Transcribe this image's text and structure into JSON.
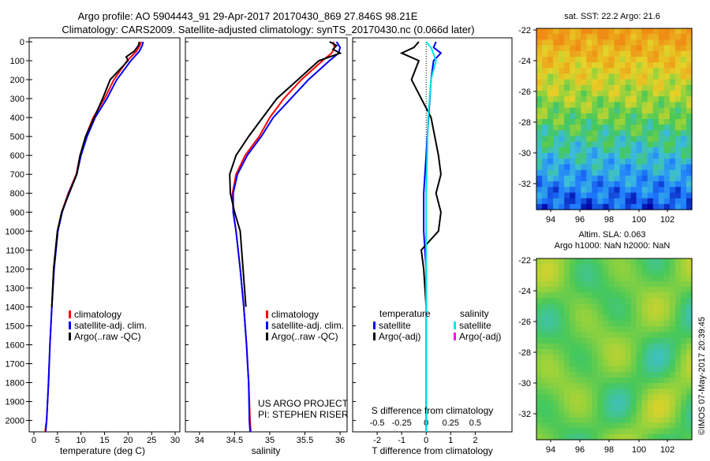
{
  "header": {
    "title_line1": "Argo profile: AO 5904443_91 29-Apr-2017 20170430_869 27.846S 98.21E",
    "title_line2": "Climatology: CARS2009. Satellite-adjusted climatology: synTS_20170430.nc (0.066d later)"
  },
  "colors": {
    "climatology": "#ff0000",
    "satellite": "#0000ff",
    "argo": "#000000",
    "sal_satellite": "#00e5e5",
    "sal_argo": "#ff00ff"
  },
  "legend": {
    "climatology": "climatology",
    "satellite": "satellite-adj. clim.",
    "argo": "Argo(..raw -QC)"
  },
  "diff_legend": {
    "temp_title": "temperature",
    "sal_title": "salinity",
    "satellite": "satellite",
    "argo": "Argo(-adj)"
  },
  "project": {
    "line1": "US ARGO PROJECT",
    "line2": "PI: STEPHEN RISER"
  },
  "sst_map": {
    "title": "sat. SST: 22.2  Argo: 21.6",
    "x_ticks": [
      "94",
      "96",
      "98",
      "100",
      "102"
    ],
    "y_ticks": [
      "-22",
      "-24",
      "-26",
      "-28",
      "-30",
      "-32"
    ]
  },
  "sla_map": {
    "title_line1": "Altim. SLA: 0.063",
    "title_line2": "Argo h1000: NaN h2000: NaN",
    "x_ticks": [
      "94",
      "96",
      "98",
      "100",
      "102"
    ],
    "y_ticks": [
      "-22",
      "-24",
      "-26",
      "-28",
      "-30",
      "-32"
    ]
  },
  "footer": {
    "stamp": "©IMOS 07-May-2017 20:39:45"
  },
  "chart_data": [
    {
      "type": "line",
      "xlabel": "temperature (deg C)",
      "ylabel": "",
      "xlim": [
        -1,
        31
      ],
      "ylim": [
        2060,
        0
      ],
      "x_ticks": [
        0,
        5,
        10,
        15,
        20,
        25,
        30
      ],
      "y_ticks": [
        0,
        100,
        200,
        300,
        400,
        500,
        600,
        700,
        800,
        900,
        1000,
        1100,
        1200,
        1300,
        1400,
        1500,
        1600,
        1700,
        1800,
        1900,
        2000
      ],
      "series": [
        {
          "name": "climatology",
          "x": [
            22.8,
            22.5,
            21.8,
            19.8,
            17.0,
            15.0,
            12.6,
            11.0,
            9.8,
            9.0,
            7.3,
            5.9,
            5.0,
            4.2,
            3.8,
            3.4,
            3.1,
            2.9,
            2.7,
            2.5,
            2.4
          ],
          "y": [
            0,
            20,
            50,
            100,
            200,
            300,
            400,
            500,
            600,
            700,
            800,
            900,
            1000,
            1200,
            1400,
            1600,
            1800,
            1900,
            2000,
            2030,
            2060
          ]
        },
        {
          "name": "satellite-adj. clim.",
          "x": [
            23.2,
            23.0,
            22.4,
            20.6,
            17.6,
            15.5,
            13.0,
            11.3,
            10.0,
            9.1,
            7.4,
            6.0,
            5.1,
            4.3,
            3.8,
            3.4,
            3.1,
            2.9,
            2.7,
            2.6,
            2.5
          ],
          "y": [
            0,
            20,
            50,
            100,
            200,
            300,
            400,
            500,
            600,
            700,
            800,
            900,
            1000,
            1200,
            1400,
            1600,
            1800,
            1900,
            2000,
            2030,
            2060
          ]
        },
        {
          "name": "Argo(..raw -QC)",
          "x": [
            22.4,
            22.2,
            21.3,
            19.6,
            20.0,
            16.2,
            14.6,
            12.8,
            11.0,
            9.8,
            9.1,
            7.5,
            5.9,
            5.0,
            4.2,
            3.8
          ],
          "y": [
            0,
            20,
            50,
            80,
            100,
            200,
            300,
            400,
            500,
            600,
            700,
            800,
            900,
            1000,
            1200,
            1400
          ]
        }
      ]
    },
    {
      "type": "line",
      "xlabel": "salinity",
      "ylabel": "",
      "xlim": [
        33.8,
        36.1
      ],
      "ylim": [
        2060,
        0
      ],
      "x_ticks": [
        34,
        34.5,
        35,
        35.5,
        36
      ],
      "series": [
        {
          "name": "climatology",
          "x": [
            35.9,
            35.92,
            35.88,
            35.75,
            35.45,
            35.2,
            35.0,
            34.85,
            34.65,
            34.52,
            34.47,
            34.48,
            34.52,
            34.58,
            34.63,
            34.67,
            34.7,
            34.72,
            34.73
          ],
          "y": [
            0,
            30,
            60,
            100,
            200,
            300,
            400,
            500,
            600,
            700,
            800,
            900,
            1000,
            1200,
            1400,
            1600,
            1800,
            2000,
            2060
          ]
        },
        {
          "name": "satellite-adj. clim.",
          "x": [
            35.95,
            36.0,
            35.98,
            35.85,
            35.55,
            35.3,
            35.05,
            34.88,
            34.68,
            34.54,
            34.48,
            34.48,
            34.52,
            34.58,
            34.63,
            34.67,
            34.7,
            34.71,
            34.72
          ],
          "y": [
            0,
            30,
            60,
            100,
            200,
            300,
            400,
            500,
            600,
            700,
            800,
            900,
            1000,
            1200,
            1400,
            1600,
            1800,
            2000,
            2060
          ]
        },
        {
          "name": "Argo(..raw -QC)",
          "x": [
            35.85,
            35.95,
            35.9,
            36.0,
            35.7,
            35.4,
            35.1,
            34.9,
            34.7,
            34.52,
            34.43,
            34.44,
            34.5,
            34.58,
            34.62,
            34.66
          ],
          "y": [
            0,
            20,
            40,
            60,
            100,
            200,
            300,
            400,
            500,
            600,
            700,
            800,
            900,
            1000,
            1200,
            1400
          ]
        }
      ]
    },
    {
      "type": "line",
      "xlabel": "T difference from climatology",
      "x2label": "S difference from climatology",
      "ylabel": "",
      "xlim": [
        -3,
        3.5
      ],
      "x2lim": [
        -0.75,
        0.875
      ],
      "ylim": [
        2060,
        0
      ],
      "x_ticks": [
        -2,
        -1,
        0,
        1,
        2
      ],
      "x2_ticks": [
        -0.5,
        -0.25,
        0,
        0.25,
        0.5
      ],
      "series": [
        {
          "name": "temperature satellite",
          "axis": "T",
          "x": [
            0.4,
            0.3,
            0.6,
            0.3,
            0.2,
            0.1,
            0.0,
            -0.1,
            -0.1,
            0.0,
            0.0,
            0.0,
            0.0,
            0.0
          ],
          "y": [
            0,
            30,
            60,
            100,
            200,
            400,
            600,
            800,
            1000,
            1200,
            1400,
            1600,
            1800,
            2060
          ]
        },
        {
          "name": "temperature Argo(-adj)",
          "axis": "T",
          "x": [
            -0.3,
            -0.5,
            -1.0,
            -0.3,
            -0.6,
            0.2,
            0.5,
            0.6,
            0.4,
            0.6,
            0.5,
            -0.2,
            -0.1,
            0.0
          ],
          "y": [
            0,
            30,
            60,
            100,
            200,
            400,
            600,
            700,
            800,
            900,
            1000,
            1100,
            1200,
            1400
          ]
        },
        {
          "name": "salinity satellite",
          "axis": "S",
          "x": [
            0.0,
            0.05,
            0.1,
            0.05,
            0.02,
            0.0,
            0.0,
            0.0
          ],
          "y": [
            0,
            30,
            100,
            200,
            400,
            800,
            1400,
            2060
          ]
        },
        {
          "name": "salinity Argo(-adj)",
          "axis": "S",
          "x": [],
          "y": []
        }
      ]
    }
  ]
}
